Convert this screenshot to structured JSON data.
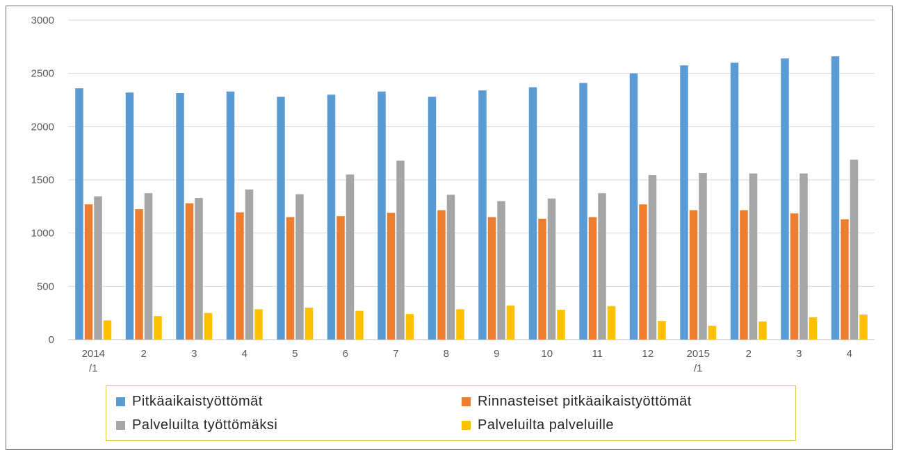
{
  "chart_data": {
    "type": "bar",
    "categories": [
      [
        "2014",
        "/1"
      ],
      [
        "2"
      ],
      [
        "3"
      ],
      [
        "4"
      ],
      [
        "5"
      ],
      [
        "6"
      ],
      [
        "7"
      ],
      [
        "8"
      ],
      [
        "9"
      ],
      [
        "10"
      ],
      [
        "11"
      ],
      [
        "12"
      ],
      [
        "2015",
        "/1"
      ],
      [
        "2"
      ],
      [
        "3"
      ],
      [
        "4"
      ]
    ],
    "ylim": [
      0,
      3000
    ],
    "yticks": [
      0,
      500,
      1000,
      1500,
      2000,
      2500,
      3000
    ],
    "grid": true,
    "legend_position": "bottom",
    "series": [
      {
        "name": "Pitkäaikaistyöttömät",
        "color": "#5b9bd5",
        "values": [
          2360,
          2320,
          2315,
          2330,
          2280,
          2300,
          2330,
          2280,
          2340,
          2370,
          2410,
          2500,
          2575,
          2600,
          2640,
          2660
        ]
      },
      {
        "name": "Rinnasteiset pitkäaikaistyöttömät",
        "color": "#ed7d31",
        "values": [
          1270,
          1225,
          1280,
          1195,
          1150,
          1160,
          1190,
          1215,
          1150,
          1135,
          1150,
          1270,
          1215,
          1215,
          1185,
          1130
        ]
      },
      {
        "name": "Palveluilta työttömäksi",
        "color": "#a5a5a5",
        "values": [
          1345,
          1375,
          1330,
          1410,
          1365,
          1550,
          1680,
          1360,
          1300,
          1325,
          1375,
          1545,
          1565,
          1560,
          1560,
          1690
        ]
      },
      {
        "name": "Palveluilta palveluille",
        "color": "#ffc000",
        "values": [
          180,
          220,
          250,
          285,
          300,
          270,
          240,
          285,
          320,
          280,
          315,
          175,
          130,
          170,
          210,
          235
        ]
      }
    ]
  }
}
